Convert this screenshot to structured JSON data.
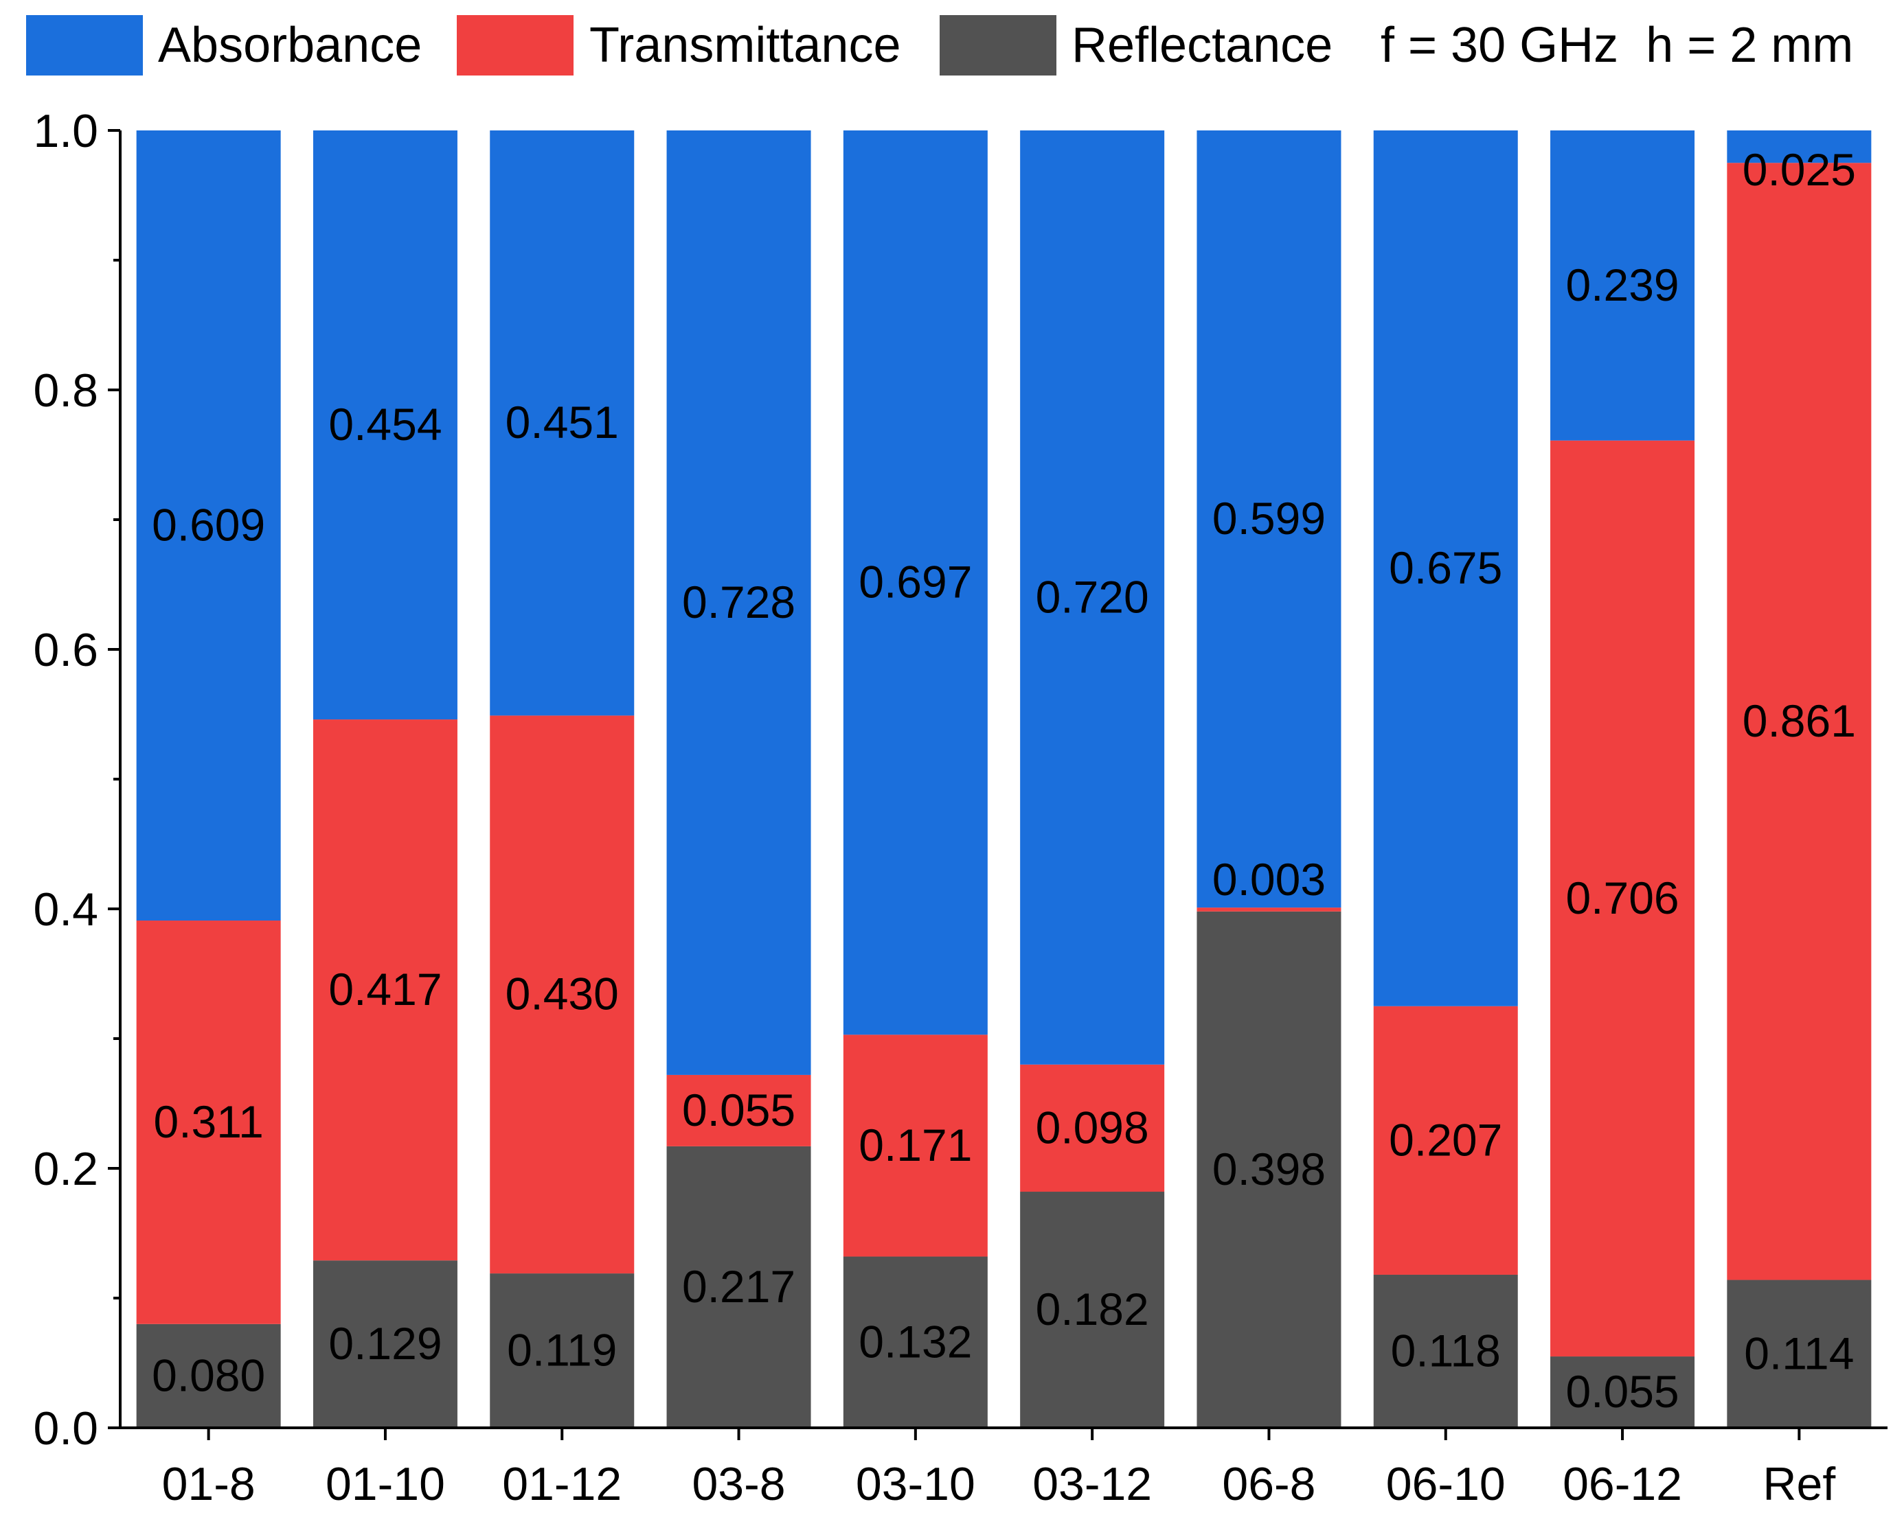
{
  "chart_data": {
    "type": "bar",
    "stacked": true,
    "annotation": "f = 30 GHz  h = 2 mm",
    "categories": [
      "01-8",
      "01-10",
      "01-12",
      "03-8",
      "03-10",
      "03-12",
      "06-8",
      "06-10",
      "06-12",
      "Ref"
    ],
    "series": [
      {
        "name": "Reflectance",
        "color": "#525252",
        "values": [
          0.08,
          0.129,
          0.119,
          0.217,
          0.132,
          0.182,
          0.398,
          0.118,
          0.055,
          0.114
        ],
        "labels": [
          "0.080",
          "0.129",
          "0.119",
          "0.217",
          "0.132",
          "0.182",
          "0.398",
          "0.118",
          "0.055",
          "0.114"
        ]
      },
      {
        "name": "Transmittance",
        "color": "#f04040",
        "values": [
          0.311,
          0.417,
          0.43,
          0.055,
          0.171,
          0.098,
          0.003,
          0.207,
          0.706,
          0.861
        ],
        "labels": [
          "0.311",
          "0.417",
          "0.430",
          "0.055",
          "0.171",
          "0.098",
          "0.003",
          "0.207",
          "0.706",
          "0.861"
        ]
      },
      {
        "name": "Absorbance",
        "color": "#1b6fdc",
        "values": [
          0.609,
          0.454,
          0.451,
          0.728,
          0.697,
          0.72,
          0.599,
          0.675,
          0.239,
          0.025
        ],
        "labels": [
          "0.609",
          "0.454",
          "0.451",
          "0.728",
          "0.697",
          "0.720",
          "0.599",
          "0.675",
          "0.239",
          "0.025"
        ]
      }
    ],
    "legend": [
      "Absorbance",
      "Transmittance",
      "Reflectance"
    ],
    "legend_position": "top",
    "ylim": [
      0,
      1.0
    ],
    "yticks": [
      "0.0",
      "0.2",
      "0.4",
      "0.6",
      "0.8",
      "1.0"
    ],
    "xlabel": "",
    "ylabel": "",
    "grid": false
  }
}
